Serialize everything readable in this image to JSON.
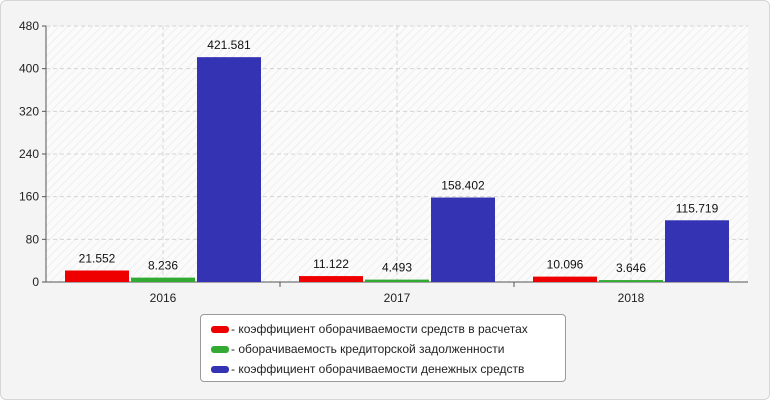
{
  "chart_data": {
    "type": "bar",
    "title": "",
    "xlabel": "",
    "ylabel": "",
    "categories": [
      "2016",
      "2017",
      "2018"
    ],
    "ylim": [
      0,
      480
    ],
    "yticks": [
      0,
      80,
      160,
      240,
      320,
      400,
      480
    ],
    "grid": true,
    "legend_position": "bottom",
    "series": [
      {
        "name": "- коэффициент оборачиваемости средств в расчетах",
        "color": "#ee0000",
        "values": [
          21.552,
          11.122,
          10.096
        ],
        "labels": [
          "21.552",
          "11.122",
          "10.096"
        ]
      },
      {
        "name": "- оборачиваемость кредиторской задолженности",
        "color": "#33aa33",
        "values": [
          8.236,
          4.493,
          3.646
        ],
        "labels": [
          "8.236",
          "4.493",
          "3.646"
        ]
      },
      {
        "name": "- коэффициент оборачиваемости денежных средств",
        "color": "#3333b3",
        "values": [
          421.581,
          158.402,
          115.719
        ],
        "labels": [
          "421.581",
          "158.402",
          "115.719"
        ]
      }
    ]
  }
}
